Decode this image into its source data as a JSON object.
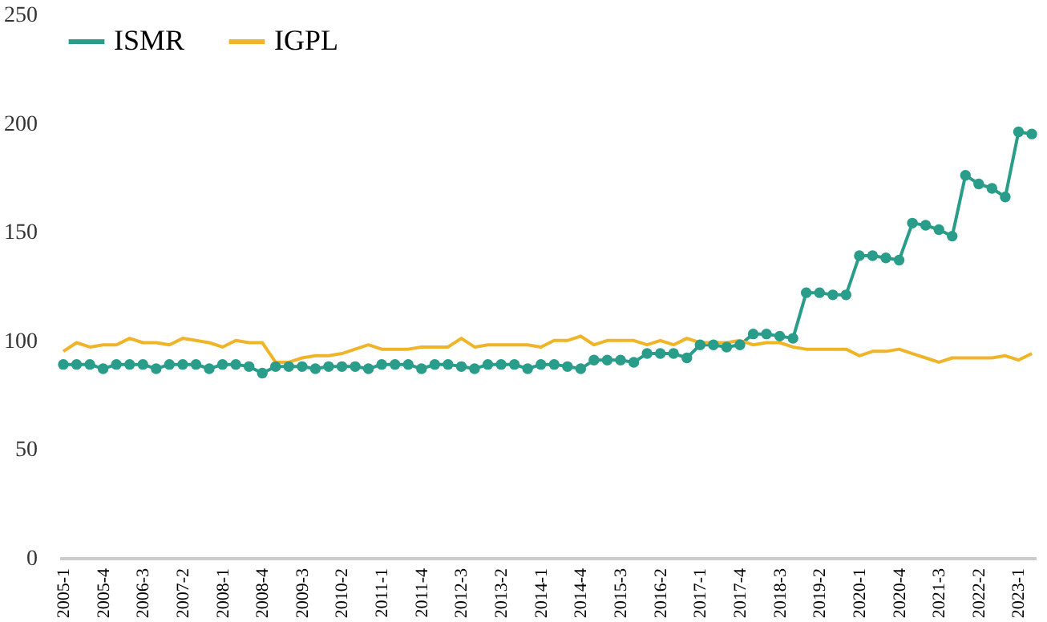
{
  "chart_data": {
    "type": "line",
    "categories": [
      "2005-1",
      null,
      null,
      "2005-4",
      null,
      null,
      "2006-3",
      null,
      null,
      "2007-2",
      null,
      null,
      "2008-1",
      null,
      null,
      "2008-4",
      null,
      null,
      "2009-3",
      null,
      null,
      "2010-2",
      null,
      null,
      "2011-1",
      null,
      null,
      "2011-4",
      null,
      null,
      "2012-3",
      null,
      null,
      "2013-2",
      null,
      null,
      "2014-1",
      null,
      null,
      "2014-4",
      null,
      null,
      "2015-3",
      null,
      null,
      "2016-2",
      null,
      null,
      "2017-1",
      null,
      null,
      "2017-4",
      null,
      null,
      "2018-3",
      null,
      null,
      "2019-2",
      null,
      null,
      "2020-1",
      null,
      null,
      "2020-4",
      null,
      null,
      "2021-3",
      null,
      null,
      "2022-2",
      null,
      null,
      "2023-1",
      null
    ],
    "series": [
      {
        "name": "ISMR",
        "color": "#2a9d8a",
        "marker": "circle",
        "values": [
          89,
          89,
          89,
          87,
          89,
          89,
          89,
          87,
          89,
          89,
          89,
          87,
          89,
          89,
          88,
          85,
          88,
          88,
          88,
          87,
          88,
          88,
          88,
          87,
          89,
          89,
          89,
          87,
          89,
          89,
          88,
          87,
          89,
          89,
          89,
          87,
          89,
          89,
          88,
          87,
          91,
          91,
          91,
          90,
          94,
          94,
          94,
          92,
          98,
          98,
          97,
          98,
          103,
          103,
          102,
          101,
          122,
          122,
          121,
          121,
          139,
          139,
          138,
          137,
          154,
          153,
          151,
          148,
          176,
          172,
          170,
          166,
          196,
          195
        ]
      },
      {
        "name": "IGPL",
        "color": "#f0b429",
        "marker": "none",
        "values": [
          95,
          99,
          97,
          98,
          98,
          101,
          99,
          99,
          98,
          101,
          100,
          99,
          97,
          100,
          99,
          99,
          90,
          90,
          92,
          93,
          93,
          94,
          96,
          98,
          96,
          96,
          96,
          97,
          97,
          97,
          101,
          97,
          98,
          98,
          98,
          98,
          97,
          100,
          100,
          102,
          98,
          100,
          100,
          100,
          98,
          100,
          98,
          101,
          99,
          99,
          99,
          100,
          98,
          99,
          99,
          97,
          96,
          96,
          96,
          96,
          93,
          95,
          95,
          96,
          94,
          92,
          90,
          92,
          92,
          92,
          92,
          93,
          91,
          94
        ]
      }
    ],
    "ylim": [
      0,
      250
    ],
    "yticks": [
      0,
      50,
      100,
      150,
      200,
      250
    ],
    "grid": false,
    "legend": "top left"
  }
}
